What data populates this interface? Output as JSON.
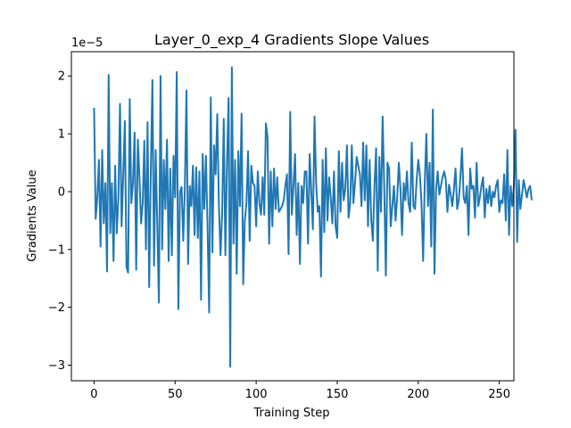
{
  "chart_data": {
    "type": "line",
    "title": "Layer_0_exp_4 Gradients Slope Values",
    "xlabel": "Training Step",
    "ylabel": "Gradients Value",
    "y_multiplier_label": "1e−5",
    "xlim": [
      -14,
      259
    ],
    "ylim": [
      -3.27,
      2.42
    ],
    "x_ticks": [
      0,
      50,
      100,
      150,
      200,
      250
    ],
    "x_tick_labels": [
      "0",
      "50",
      "100",
      "150",
      "200",
      "250"
    ],
    "y_ticks": [
      -3,
      -2,
      -1,
      0,
      1,
      2
    ],
    "y_tick_labels": [
      "−3",
      "−2",
      "−1",
      "0",
      "1",
      "2"
    ],
    "grid": false,
    "line_color": "#1f77b4",
    "series": [
      {
        "values": [
          1.45,
          -0.47,
          -0.1,
          0.55,
          -0.95,
          0.72,
          -0.55,
          0.15,
          -1.38,
          2.02,
          -0.72,
          0.15,
          -1.2,
          0.45,
          -0.72,
          -0.1,
          1.52,
          -0.6,
          0.3,
          1.22,
          -1.3,
          -1.4,
          1.6,
          -0.2,
          0.15,
          1.02,
          -1.35,
          0.9,
          0.25,
          -0.55,
          -0.2,
          0.88,
          -1.0,
          1.2,
          -1.65,
          0.35,
          1.93,
          -1.28,
          0.72,
          -0.6,
          -1.92,
          2.0,
          -1.0,
          0.55,
          -0.3,
          0.9,
          -1.2,
          0.4,
          -1.1,
          0.62,
          -0.1,
          2.07,
          -2.03,
          0.0,
          0.08,
          -0.85,
          0.05,
          1.75,
          -1.25,
          0.1,
          -0.25,
          0.45,
          -0.75,
          0.42,
          -0.8,
          0.35,
          -1.87,
          0.65,
          -0.3,
          0.62,
          -0.6,
          -2.09,
          1.63,
          -1.05,
          0.8,
          0.3,
          1.34,
          -0.2,
          -1.1,
          -0.4,
          1.26,
          -1.1,
          0.5,
          1.62,
          -3.03,
          2.15,
          -0.9,
          0.55,
          -1.42,
          0.7,
          -0.25,
          1.35,
          -1.6,
          -0.5,
          -0.2,
          0.7,
          -0.85,
          0.45,
          0.15,
          0.1,
          -0.6,
          0.35,
          -0.2,
          -0.4,
          0.25,
          -0.4,
          1.18,
          0.95,
          -0.9,
          0.35,
          -0.6,
          0.4,
          -0.3,
          0.25,
          -0.35,
          -0.3,
          -0.25,
          -0.15,
          0.1,
          0.3,
          -1.08,
          1.38,
          -0.4,
          0.1,
          0.65,
          -0.75,
          0.15,
          -1.25,
          0.1,
          -0.2,
          0.35,
          0.35,
          -0.9,
          0.65,
          0.0,
          -0.65,
          1.3,
          0.15,
          -0.35,
          -0.25,
          -1.47,
          0.55,
          -0.7,
          0.75,
          -0.5,
          0.25,
          -0.1,
          -0.55,
          0.35,
          -0.6,
          -0.8,
          0.7,
          -0.35,
          0.5,
          -0.15,
          0.05,
          0.8,
          -0.45,
          -0.2,
          0.8,
          -0.2,
          0.15,
          0.6,
          0.45,
          0.3,
          -0.25,
          0.85,
          -0.15,
          0.8,
          -0.6,
          0.55,
          -0.5,
          -0.85,
          0.12,
          0.75,
          -1.37,
          0.6,
          -0.35,
          1.3,
          0.1,
          -1.45,
          0.5,
          0.4,
          -0.6,
          -0.25,
          0.1,
          -0.5,
          -0.1,
          0.5,
          0.05,
          -0.75,
          0.15,
          -0.15,
          0.35,
          -0.2,
          -0.35,
          0.85,
          -0.25,
          -0.3,
          0.2,
          0.55,
          0.3,
          -0.2,
          -1.2,
          0.15,
          1.0,
          -0.25,
          0.5,
          -0.95,
          1.42,
          -1.42,
          0.05,
          0.35,
          -0.05,
          0.1,
          0.25,
          0.35,
          0.2,
          -0.35,
          0.12,
          -0.05,
          -0.25,
          0.05,
          0.4,
          -0.3,
          -0.15,
          0.25,
          0.75,
          -0.1,
          -0.2,
          0.1,
          -0.75,
          0.4,
          0.05,
          0.1,
          -0.45,
          0.5,
          -0.25,
          -0.1,
          0.1,
          0.25,
          -0.45,
          0.05,
          -0.2,
          0.1,
          -0.25,
          0.0,
          -0.1,
          0.1,
          0.2,
          -0.35,
          -0.15,
          -0.2,
          0.3,
          -0.5,
          0.72,
          -0.75,
          0.1,
          -0.25,
          0.1,
          1.07,
          -0.87,
          0.2,
          -0.3,
          -0.05,
          0.2,
          0.05,
          -0.1,
          0.05,
          0.1,
          -0.15
        ]
      }
    ]
  }
}
